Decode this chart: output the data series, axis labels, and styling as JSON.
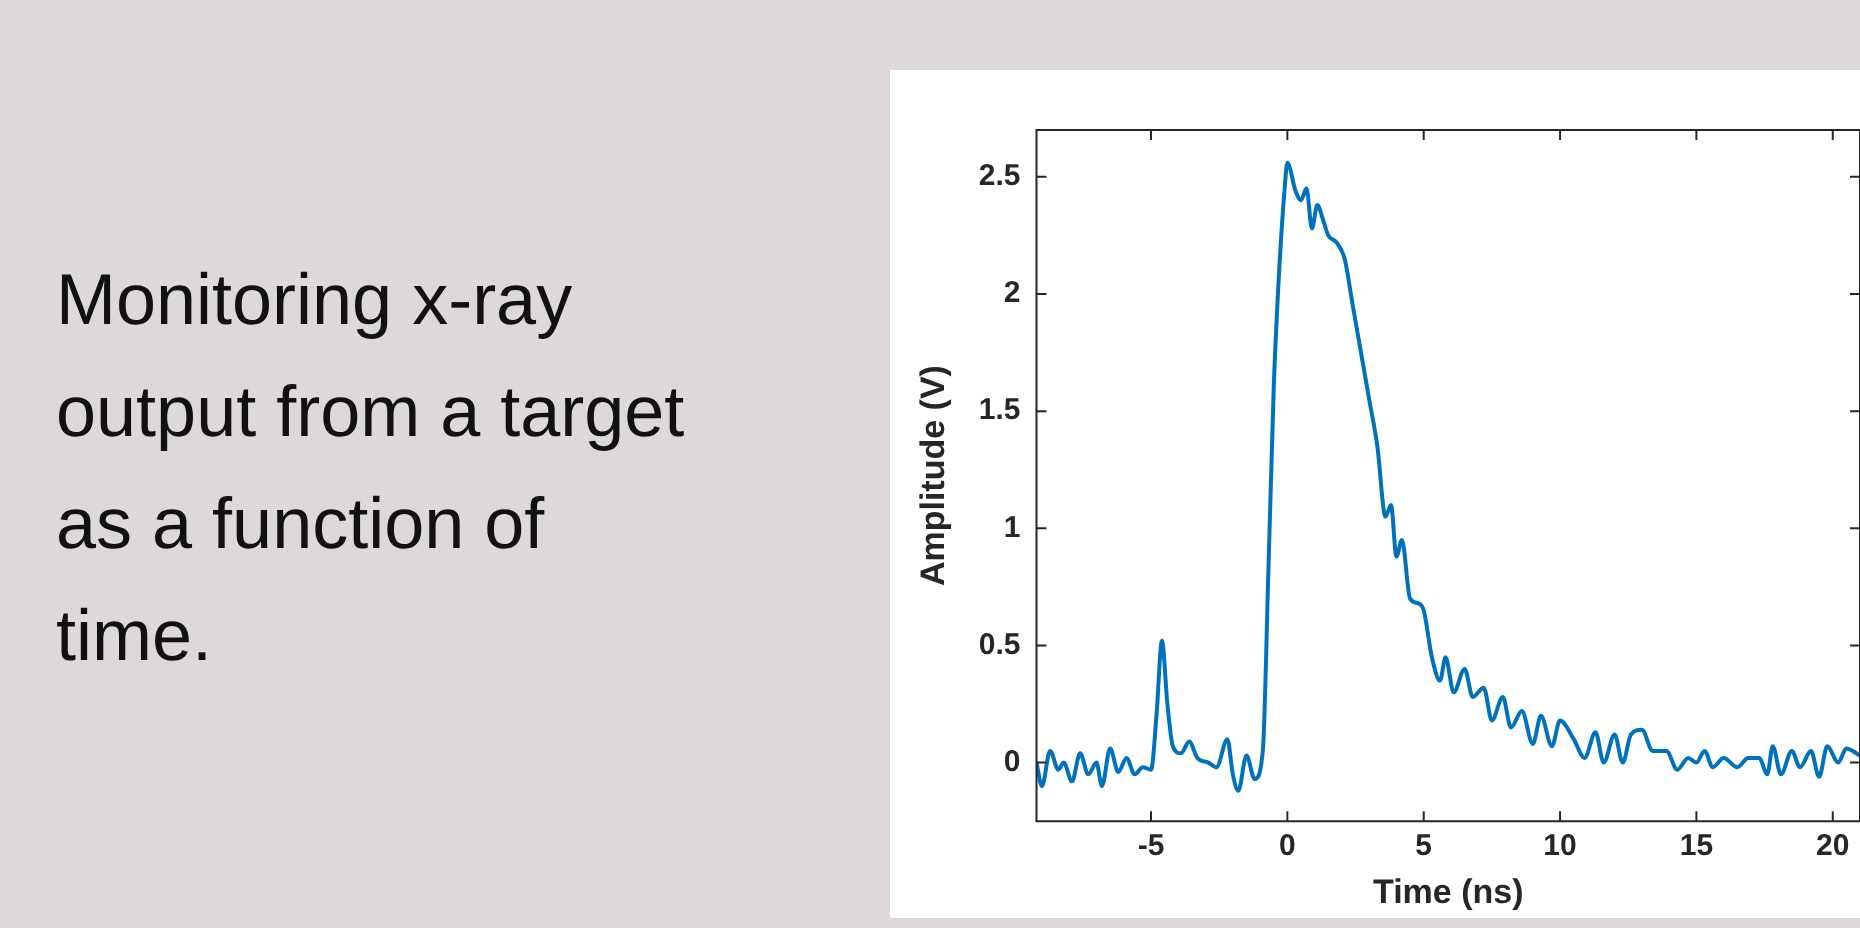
{
  "chart_data": {
    "type": "line",
    "xlabel": "Time (ns)",
    "ylabel": "Amplitude (V)",
    "annotations": [
      "Monitoring x-ray output from a target as a function of time."
    ],
    "xlim": [
      -9.2,
      21
    ],
    "xticks": [
      -5,
      0,
      5,
      10,
      15,
      20
    ],
    "ylim": [
      -0.25,
      2.7
    ],
    "yticks": [
      0,
      0.5,
      1,
      1.5,
      2,
      2.5
    ],
    "grid": false,
    "legend": false,
    "marker": "none",
    "line_style": "solid",
    "series": [
      {
        "color": "#0072bd",
        "x": [
          -9.2,
          -9.0,
          -8.7,
          -8.4,
          -8.2,
          -7.9,
          -7.6,
          -7.3,
          -7.0,
          -6.8,
          -6.5,
          -6.2,
          -5.9,
          -5.6,
          -5.3,
          -5.0,
          -4.8,
          -4.6,
          -4.4,
          -4.2,
          -3.9,
          -3.6,
          -3.3,
          -2.9,
          -2.6,
          -2.2,
          -2.0,
          -1.8,
          -1.5,
          -1.2,
          -0.9,
          -0.7,
          -0.5,
          -0.3,
          -0.1,
          0.0,
          0.3,
          0.5,
          0.7,
          0.9,
          1.1,
          1.3,
          1.5,
          1.8,
          2.1,
          2.4,
          2.7,
          3.0,
          3.3,
          3.6,
          3.8,
          4.0,
          4.2,
          4.5,
          4.8,
          5.0,
          5.3,
          5.6,
          5.8,
          6.1,
          6.5,
          6.8,
          7.2,
          7.5,
          7.9,
          8.2,
          8.6,
          9.0,
          9.3,
          9.7,
          10.0,
          10.5,
          10.9,
          11.3,
          11.6,
          12.0,
          12.3,
          12.6,
          13.0,
          13.4,
          13.9,
          14.3,
          14.7,
          15.0,
          15.3,
          15.6,
          16.0,
          16.5,
          16.9,
          17.3,
          17.6,
          17.8,
          18.1,
          18.5,
          18.8,
          19.2,
          19.5,
          19.8,
          20.2,
          20.5,
          21.0
        ],
        "values": [
          0.0,
          -0.1,
          0.05,
          -0.03,
          0.0,
          -0.08,
          0.04,
          -0.05,
          0.0,
          -0.1,
          0.06,
          -0.04,
          0.02,
          -0.05,
          -0.02,
          -0.03,
          0.2,
          0.52,
          0.25,
          0.07,
          0.04,
          0.09,
          0.02,
          0.0,
          -0.02,
          0.1,
          -0.05,
          -0.12,
          0.03,
          -0.07,
          0.05,
          0.8,
          1.6,
          2.1,
          2.45,
          2.56,
          2.44,
          2.4,
          2.45,
          2.28,
          2.38,
          2.32,
          2.25,
          2.22,
          2.15,
          1.95,
          1.75,
          1.55,
          1.35,
          1.05,
          1.1,
          0.88,
          0.95,
          0.7,
          0.68,
          0.65,
          0.45,
          0.35,
          0.45,
          0.3,
          0.4,
          0.28,
          0.32,
          0.18,
          0.28,
          0.15,
          0.22,
          0.08,
          0.2,
          0.07,
          0.18,
          0.1,
          0.02,
          0.13,
          0.0,
          0.12,
          0.0,
          0.12,
          0.14,
          0.05,
          0.05,
          -0.03,
          0.02,
          0.0,
          0.05,
          -0.02,
          0.02,
          -0.02,
          0.02,
          0.02,
          -0.05,
          0.07,
          -0.05,
          0.05,
          -0.02,
          0.05,
          -0.06,
          0.07,
          0.0,
          0.06,
          0.03
        ]
      }
    ]
  }
}
